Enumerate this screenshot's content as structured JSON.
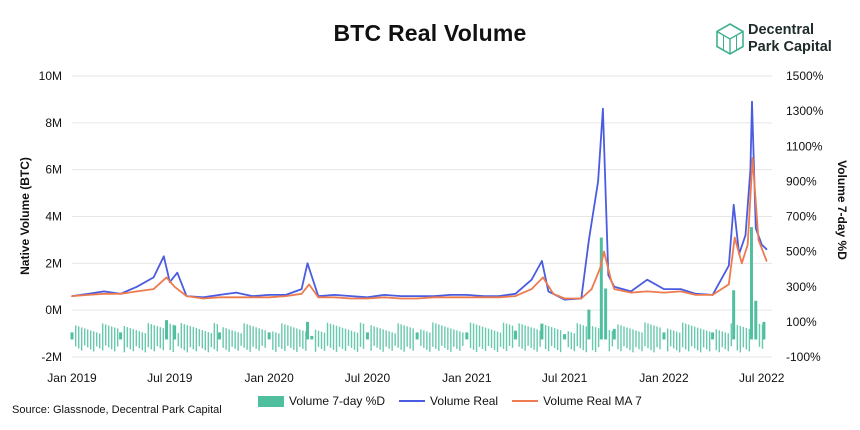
{
  "title": "BTC Real Volume",
  "logo": {
    "line1": "Decentral",
    "line2": "Park Capital",
    "icon": "hexagon-cube-icon"
  },
  "source": "Source: Glassnode, Decentral Park Capital",
  "colors": {
    "bars": "#4fbfa0",
    "volume": "#4a5ce0",
    "ma7": "#ee7b4f",
    "grid": "#e6e6e6"
  },
  "chart_data": {
    "type": "line",
    "title": "BTC Real Volume",
    "xlabel": "",
    "ylabel": "Native Volume (BTC)",
    "y2label": "Volume 7-day %D",
    "ylim": [
      -2000000,
      10000000
    ],
    "y2lim": [
      -100,
      1500
    ],
    "y_ticks": [
      "10M",
      "8M",
      "6M",
      "4M",
      "2M",
      "0M",
      "-2M"
    ],
    "y_tick_values": [
      10000000,
      8000000,
      6000000,
      4000000,
      2000000,
      0,
      -2000000
    ],
    "y2_ticks": [
      "1500%",
      "1300%",
      "1100%",
      "900%",
      "700%",
      "500%",
      "300%",
      "100%",
      "-100%"
    ],
    "y2_tick_values": [
      1500,
      1300,
      1100,
      900,
      700,
      500,
      300,
      100,
      -100
    ],
    "x_ticks": [
      "Jan 2019",
      "Jul 2019",
      "Jan 2020",
      "Jul 2020",
      "Jan 2021",
      "Jul 2021",
      "Jan 2022",
      "Jul 2022"
    ],
    "x_tick_dates": [
      "2019-01-01",
      "2019-07-01",
      "2020-01-01",
      "2020-07-01",
      "2021-01-01",
      "2021-07-01",
      "2022-01-01",
      "2022-07-01"
    ],
    "grid": "horizontal",
    "legend_position": "bottom",
    "series": [
      {
        "name": "Volume Real",
        "type": "line",
        "axis": "left",
        "x": [
          "2019-01-01",
          "2019-02-01",
          "2019-03-01",
          "2019-04-01",
          "2019-05-01",
          "2019-06-01",
          "2019-06-20",
          "2019-07-01",
          "2019-07-15",
          "2019-08-01",
          "2019-09-01",
          "2019-10-01",
          "2019-11-01",
          "2019-12-01",
          "2020-01-01",
          "2020-02-01",
          "2020-03-01",
          "2020-03-12",
          "2020-04-01",
          "2020-05-01",
          "2020-06-01",
          "2020-07-01",
          "2020-08-01",
          "2020-09-01",
          "2020-10-01",
          "2020-11-01",
          "2020-12-01",
          "2021-01-01",
          "2021-02-01",
          "2021-03-01",
          "2021-04-01",
          "2021-05-01",
          "2021-05-20",
          "2021-06-01",
          "2021-07-01",
          "2021-08-01",
          "2021-08-15",
          "2021-09-01",
          "2021-09-10",
          "2021-09-20",
          "2021-10-01",
          "2021-11-01",
          "2021-12-01",
          "2022-01-01",
          "2022-02-01",
          "2022-03-01",
          "2022-04-01",
          "2022-05-01",
          "2022-05-10",
          "2022-05-20",
          "2022-06-01",
          "2022-06-10",
          "2022-06-13",
          "2022-06-20",
          "2022-07-01",
          "2022-07-10"
        ],
        "values": [
          600000,
          700000,
          800000,
          700000,
          1000000,
          1400000,
          2300000,
          1200000,
          1600000,
          600000,
          550000,
          650000,
          750000,
          600000,
          650000,
          650000,
          900000,
          2000000,
          600000,
          650000,
          600000,
          550000,
          650000,
          600000,
          600000,
          600000,
          650000,
          650000,
          600000,
          600000,
          700000,
          1300000,
          2100000,
          800000,
          450000,
          500000,
          3000000,
          5500000,
          8600000,
          1500000,
          1000000,
          800000,
          1300000,
          900000,
          900000,
          700000,
          650000,
          1900000,
          4500000,
          2400000,
          3200000,
          6000000,
          8900000,
          3500000,
          2800000,
          2600000
        ]
      },
      {
        "name": "Volume Real MA 7",
        "type": "line",
        "axis": "left",
        "x": [
          "2019-01-01",
          "2019-02-01",
          "2019-03-01",
          "2019-04-01",
          "2019-05-01",
          "2019-06-01",
          "2019-06-25",
          "2019-07-10",
          "2019-08-01",
          "2019-09-01",
          "2019-10-01",
          "2019-11-01",
          "2019-12-01",
          "2020-01-01",
          "2020-02-01",
          "2020-03-01",
          "2020-03-15",
          "2020-04-01",
          "2020-05-01",
          "2020-06-01",
          "2020-07-01",
          "2020-08-01",
          "2020-09-01",
          "2020-10-01",
          "2020-11-01",
          "2020-12-01",
          "2021-01-01",
          "2021-02-01",
          "2021-03-01",
          "2021-04-01",
          "2021-05-01",
          "2021-05-22",
          "2021-06-10",
          "2021-07-01",
          "2021-08-01",
          "2021-08-20",
          "2021-09-05",
          "2021-09-12",
          "2021-09-25",
          "2021-10-01",
          "2021-11-01",
          "2021-12-01",
          "2022-01-01",
          "2022-02-01",
          "2022-03-01",
          "2022-04-01",
          "2022-05-01",
          "2022-05-12",
          "2022-05-25",
          "2022-06-05",
          "2022-06-14",
          "2022-06-25",
          "2022-07-10"
        ],
        "values": [
          600000,
          650000,
          700000,
          700000,
          800000,
          900000,
          1400000,
          1000000,
          600000,
          500000,
          550000,
          550000,
          550000,
          550000,
          600000,
          700000,
          1100000,
          550000,
          550000,
          500000,
          500000,
          550000,
          500000,
          500000,
          550000,
          550000,
          550000,
          550000,
          550000,
          600000,
          900000,
          1400000,
          700000,
          500000,
          500000,
          900000,
          1800000,
          2500000,
          1300000,
          900000,
          750000,
          800000,
          750000,
          800000,
          650000,
          650000,
          1100000,
          3100000,
          2000000,
          2800000,
          6500000,
          3000000,
          2100000
        ]
      },
      {
        "name": "Volume 7-day %D",
        "type": "bar",
        "axis": "right",
        "x": [
          "2019-01-01",
          "2019-04-01",
          "2019-06-25",
          "2019-07-10",
          "2019-10-01",
          "2020-01-01",
          "2020-03-12",
          "2020-03-20",
          "2020-07-01",
          "2020-10-01",
          "2021-01-01",
          "2021-04-01",
          "2021-05-20",
          "2021-07-01",
          "2021-08-15",
          "2021-09-07",
          "2021-09-15",
          "2021-10-01",
          "2022-01-01",
          "2022-04-01",
          "2022-05-10",
          "2022-06-12",
          "2022-06-20",
          "2022-07-05"
        ],
        "values": [
          40,
          40,
          110,
          80,
          40,
          40,
          100,
          20,
          40,
          40,
          40,
          50,
          90,
          30,
          170,
          580,
          290,
          60,
          40,
          40,
          280,
          640,
          220,
          100
        ]
      }
    ]
  }
}
